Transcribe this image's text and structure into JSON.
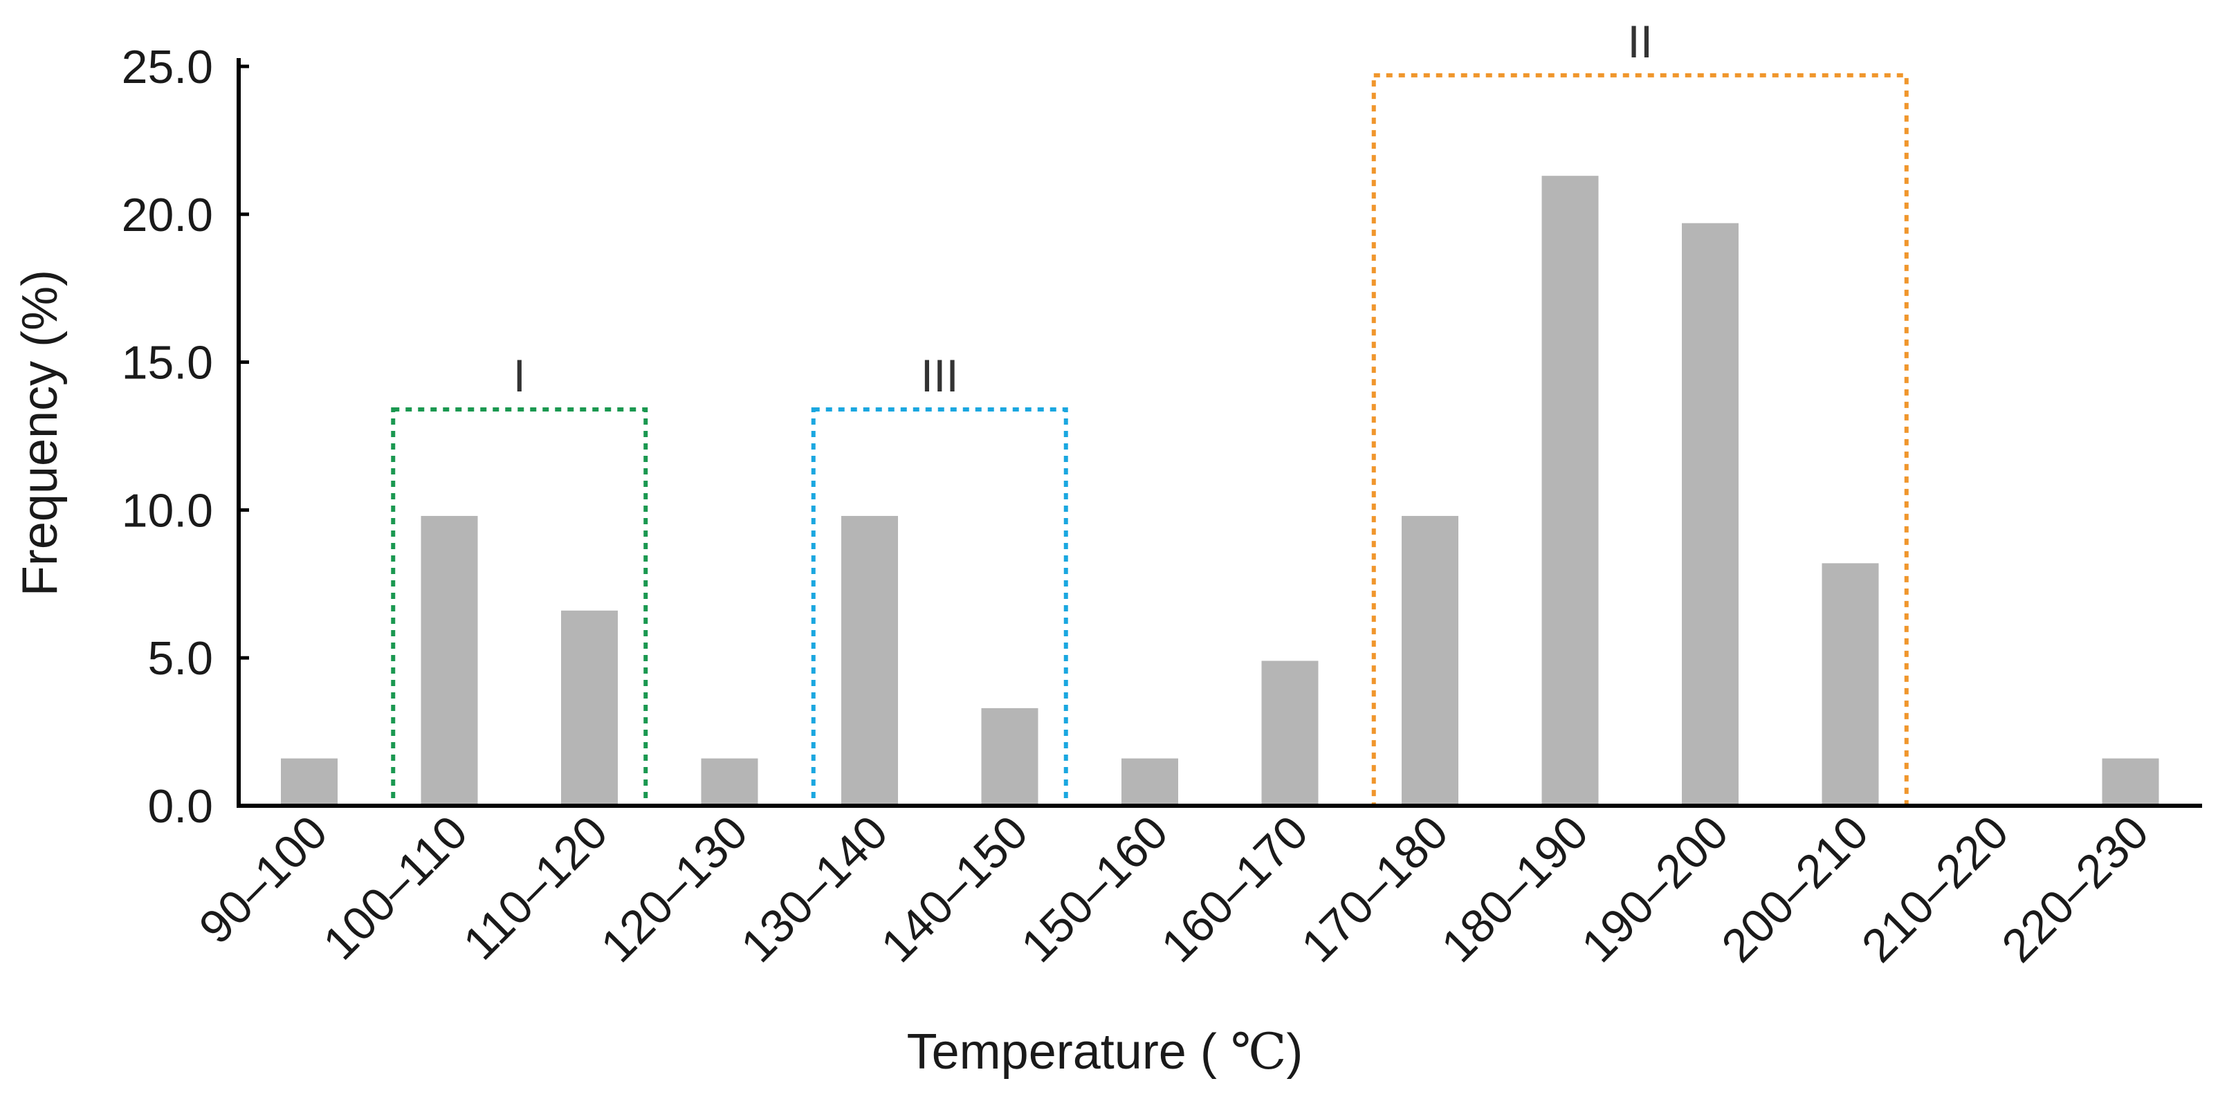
{
  "chart_data": {
    "type": "bar",
    "title": "",
    "xlabel": "Temperature ( ℃)",
    "ylabel": "Frequency (%)",
    "ylim": [
      0,
      25
    ],
    "yticks": [
      "0.0",
      "5.0",
      "10.0",
      "15.0",
      "20.0",
      "25.0"
    ],
    "categories": [
      "90–100",
      "100–110",
      "110–120",
      "120–130",
      "130–140",
      "140–150",
      "150–160",
      "160–170",
      "170–180",
      "180–190",
      "190–200",
      "200–210",
      "210–220",
      "220–230"
    ],
    "values": [
      1.6,
      9.8,
      6.6,
      1.6,
      9.8,
      3.3,
      1.6,
      4.9,
      9.8,
      21.3,
      19.7,
      8.2,
      0,
      1.6
    ],
    "bar_color": "#b5b5b5",
    "groups": [
      {
        "label": "I",
        "from": 1,
        "to": 2,
        "top": 13.4,
        "color": "#1a9850"
      },
      {
        "label": "III",
        "from": 4,
        "to": 5,
        "top": 13.4,
        "color": "#1aa7e0"
      },
      {
        "label": "II",
        "from": 8,
        "to": 11,
        "top": 24.7,
        "color": "#f0962c"
      }
    ]
  }
}
